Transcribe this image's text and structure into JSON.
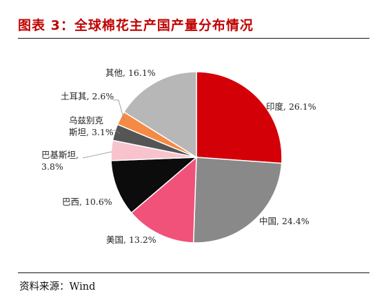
{
  "title": "图表 3：全球棉花主产国产量分布情况",
  "source": "资料来源：Wind",
  "chart_data": {
    "type": "pie",
    "title": "图表 3：全球棉花主产国产量分布情况",
    "unit": "%",
    "slices": [
      {
        "name": "印度",
        "value": 26.1,
        "label": "印度, 26.1%",
        "color": "#d40008"
      },
      {
        "name": "中国",
        "value": 24.4,
        "label": "中国, 24.4%",
        "color": "#898989"
      },
      {
        "name": "美国",
        "value": 13.2,
        "label": "美国, 13.2%",
        "color": "#f0527a"
      },
      {
        "name": "巴西",
        "value": 10.6,
        "label": "巴西, 10.6%",
        "color": "#0c0c0c"
      },
      {
        "name": "巴基斯坦",
        "value": 3.8,
        "label_lines": [
          "巴基斯坦,",
          "3.8%"
        ],
        "color": "#f8c3cc"
      },
      {
        "name": "乌兹别克斯坦",
        "value": 3.1,
        "label_lines": [
          "乌兹别克",
          "斯坦, 3.1%"
        ],
        "color": "#555555"
      },
      {
        "name": "土耳其",
        "value": 2.6,
        "label": "土耳其, 2.6%",
        "color": "#f58a45"
      },
      {
        "name": "其他",
        "value": 16.1,
        "label": "其他, 16.1%",
        "color": "#b8b7b8"
      }
    ],
    "start_angle": "12 o'clock",
    "direction": "clockwise",
    "legend": "none"
  }
}
